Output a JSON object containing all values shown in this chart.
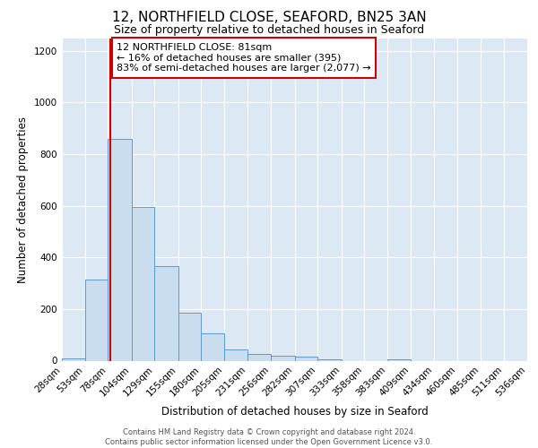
{
  "title": "12, NORTHFIELD CLOSE, SEAFORD, BN25 3AN",
  "subtitle": "Size of property relative to detached houses in Seaford",
  "xlabel": "Distribution of detached houses by size in Seaford",
  "ylabel": "Number of detached properties",
  "bin_edges": [
    28,
    53,
    78,
    104,
    129,
    155,
    180,
    205,
    231,
    256,
    282,
    307,
    333,
    358,
    383,
    409,
    434,
    460,
    485,
    511,
    536
  ],
  "bar_heights": [
    10,
    315,
    860,
    595,
    365,
    185,
    105,
    45,
    25,
    20,
    15,
    5,
    0,
    0,
    5,
    0,
    0,
    0,
    0,
    0
  ],
  "bar_color": "#c9ddef",
  "bar_edge_color": "#5b9bd5",
  "property_size": 81,
  "red_line_color": "#cc0000",
  "annotation_line1": "12 NORTHFIELD CLOSE: 81sqm",
  "annotation_line2": "← 16% of detached houses are smaller (395)",
  "annotation_line3": "83% of semi-detached houses are larger (2,077) →",
  "annotation_box_edgecolor": "#cc0000",
  "ylim_max": 1250,
  "yticks": [
    0,
    200,
    400,
    600,
    800,
    1000,
    1200
  ],
  "footer_line1": "Contains HM Land Registry data © Crown copyright and database right 2024.",
  "footer_line2": "Contains public sector information licensed under the Open Government Licence v3.0.",
  "bg_color": "#dce9f5",
  "title_fontsize": 11,
  "subtitle_fontsize": 9,
  "xlabel_fontsize": 8.5,
  "ylabel_fontsize": 8.5,
  "annotation_fontsize": 8,
  "tick_fontsize": 7.5,
  "footer_fontsize": 6
}
